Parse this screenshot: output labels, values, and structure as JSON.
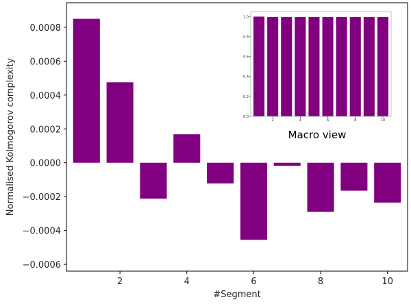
{
  "chart_data": [
    {
      "type": "bar",
      "xlabel": "#Segment",
      "ylabel": "Normalised Kolmogorov complexity",
      "x": [
        1,
        2,
        3,
        4,
        5,
        6,
        7,
        8,
        9,
        10
      ],
      "values": [
        0.00085,
        0.000475,
        -0.000212,
        0.000168,
        -0.000122,
        -0.000455,
        -1.8e-05,
        -0.00029,
        -0.000165,
        -0.000235
      ],
      "xticks": [
        2,
        4,
        6,
        8,
        10
      ],
      "xtick_labels": [
        "2",
        "4",
        "6",
        "8",
        "10"
      ],
      "yticks": [
        -0.0006,
        -0.0004,
        -0.0002,
        0.0,
        0.0002,
        0.0004,
        0.0006,
        0.0008
      ],
      "ytick_labels": [
        "−0.0006",
        "−0.0004",
        "−0.0002",
        "0.0000",
        "0.0002",
        "0.0004",
        "0.0006",
        "0.0008"
      ],
      "xlim": [
        0.4,
        10.6
      ],
      "ylim": [
        -0.00064,
        0.000945
      ],
      "color": "#800080",
      "grid": false
    },
    {
      "type": "bar",
      "caption": "Macro view",
      "x": [
        1,
        2,
        3,
        4,
        5,
        6,
        7,
        8,
        9,
        10
      ],
      "values": [
        1.0,
        0.995,
        0.995,
        0.995,
        0.995,
        0.995,
        0.995,
        0.995,
        0.995,
        0.995
      ],
      "xticks": [
        2,
        4,
        6,
        8,
        10
      ],
      "xtick_labels": [
        "2",
        "4",
        "6",
        "8",
        "10"
      ],
      "yticks": [
        0.0,
        0.2,
        0.4,
        0.6,
        0.8,
        1.0
      ],
      "ytick_labels": [
        "0.0",
        "0.2",
        "0.4",
        "0.6",
        "0.8",
        "1.0"
      ],
      "xlim": [
        0.4,
        10.6
      ],
      "ylim": [
        0.0,
        1.05
      ],
      "color": "#800080",
      "grid": false
    }
  ]
}
